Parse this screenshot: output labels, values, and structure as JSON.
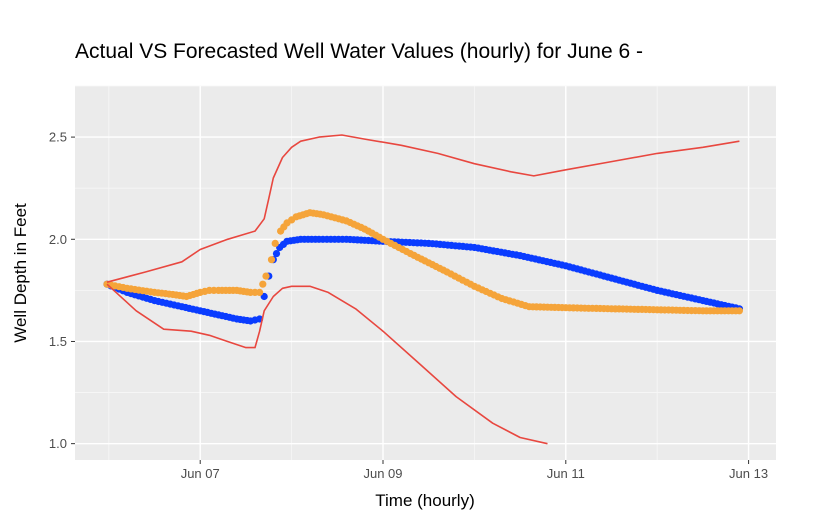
{
  "chart_data": {
    "type": "scatter",
    "title": "Actual VS Forecasted Well Water Values (hourly) for June 6 -",
    "xlabel": "Time (hourly)",
    "ylabel": "Well Depth in Feet",
    "x_ticks": [
      "Jun 07",
      "Jun 09",
      "Jun 11",
      "Jun 13"
    ],
    "x_tick_days": [
      7,
      9,
      11,
      13
    ],
    "xlim": [
      5.63,
      13.3
    ],
    "ylim": [
      0.92,
      2.75
    ],
    "y_ticks": [
      1.0,
      1.5,
      2.0,
      2.5
    ],
    "y_tick_labels": [
      "1.0",
      "1.5",
      "2.0",
      "2.5"
    ],
    "grid": true,
    "series": [
      {
        "kind": "points",
        "color": "#0a3cff",
        "x": [
          5.98,
          6.2,
          6.5,
          6.8,
          7.0,
          7.2,
          7.4,
          7.55,
          7.65,
          7.7,
          7.75,
          7.8,
          7.87,
          7.95,
          8.1,
          8.3,
          8.6,
          9.0,
          9.5,
          10.0,
          10.5,
          11.0,
          11.5,
          12.0,
          12.5,
          12.9
        ],
        "y": [
          1.78,
          1.74,
          1.7,
          1.67,
          1.65,
          1.63,
          1.61,
          1.6,
          1.61,
          1.72,
          1.82,
          1.9,
          1.96,
          1.99,
          2.0,
          2.0,
          2.0,
          1.99,
          1.98,
          1.96,
          1.92,
          1.87,
          1.81,
          1.75,
          1.7,
          1.66
        ]
      },
      {
        "kind": "points",
        "color": "#f5a43a",
        "x": [
          5.98,
          6.2,
          6.5,
          6.7,
          6.85,
          7.0,
          7.1,
          7.2,
          7.4,
          7.55,
          7.65,
          7.72,
          7.78,
          7.82,
          7.88,
          7.95,
          8.05,
          8.2,
          8.35,
          8.6,
          8.8,
          9.0,
          9.3,
          9.7,
          10.0,
          10.3,
          10.6,
          11.0,
          11.5,
          12.0,
          12.5,
          12.9
        ],
        "y": [
          1.78,
          1.76,
          1.74,
          1.73,
          1.72,
          1.74,
          1.75,
          1.75,
          1.75,
          1.74,
          1.74,
          1.82,
          1.9,
          1.98,
          2.04,
          2.08,
          2.11,
          2.13,
          2.12,
          2.09,
          2.05,
          2.0,
          1.93,
          1.84,
          1.77,
          1.71,
          1.67,
          1.665,
          1.66,
          1.655,
          1.65,
          1.65
        ]
      },
      {
        "kind": "line",
        "color": "#e8473f",
        "x": [
          5.98,
          6.4,
          6.8,
          7.0,
          7.3,
          7.6,
          7.7,
          7.75,
          7.8,
          7.9,
          8.0,
          8.1,
          8.3,
          8.55,
          8.8,
          9.2,
          9.6,
          10.0,
          10.4,
          10.65,
          11.0,
          11.5,
          12.0,
          12.5,
          12.9
        ],
        "y": [
          1.79,
          1.84,
          1.89,
          1.95,
          2.0,
          2.04,
          2.1,
          2.2,
          2.3,
          2.4,
          2.45,
          2.48,
          2.5,
          2.51,
          2.49,
          2.46,
          2.42,
          2.37,
          2.33,
          2.31,
          2.34,
          2.38,
          2.42,
          2.45,
          2.48
        ]
      },
      {
        "kind": "line",
        "color": "#e8473f",
        "x": [
          5.98,
          6.3,
          6.6,
          6.9,
          7.1,
          7.3,
          7.5,
          7.6,
          7.65,
          7.7,
          7.8,
          7.9,
          8.0,
          8.2,
          8.4,
          8.7,
          9.0,
          9.4,
          9.8,
          10.2,
          10.5,
          10.8
        ],
        "y": [
          1.78,
          1.65,
          1.56,
          1.55,
          1.53,
          1.5,
          1.47,
          1.47,
          1.55,
          1.65,
          1.72,
          1.76,
          1.77,
          1.77,
          1.74,
          1.66,
          1.55,
          1.39,
          1.23,
          1.1,
          1.03,
          1.0
        ]
      }
    ]
  }
}
